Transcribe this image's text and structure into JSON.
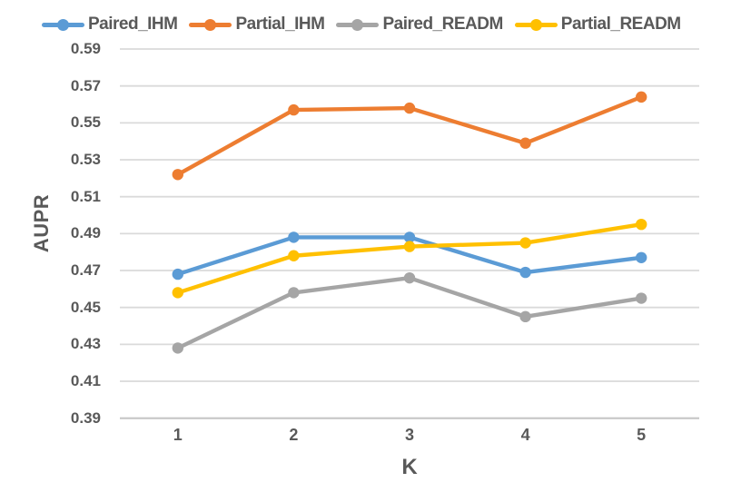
{
  "chart_data": {
    "type": "line",
    "categories": [
      "1",
      "2",
      "3",
      "4",
      "5"
    ],
    "series": [
      {
        "name": "Paired_IHM",
        "color": "#5B9BD5",
        "values": [
          0.468,
          0.488,
          0.488,
          0.469,
          0.477
        ]
      },
      {
        "name": "Partial_IHM",
        "color": "#ED7D31",
        "values": [
          0.522,
          0.557,
          0.558,
          0.539,
          0.564
        ]
      },
      {
        "name": "Paired_READM",
        "color": "#A5A5A5",
        "values": [
          0.428,
          0.458,
          0.466,
          0.445,
          0.455
        ]
      },
      {
        "name": "Partial_READM",
        "color": "#FFC000",
        "values": [
          0.458,
          0.478,
          0.483,
          0.485,
          0.495
        ]
      }
    ],
    "xlabel": "K",
    "ylabel": "AUPR",
    "ylim": [
      0.39,
      0.59
    ],
    "y_ticks": [
      "0.59",
      "0.57",
      "0.55",
      "0.53",
      "0.51",
      "0.49",
      "0.47",
      "0.45",
      "0.43",
      "0.41",
      "0.39"
    ],
    "legend_position": "top",
    "grid": "horizontal",
    "gridline_color": "#DADADA",
    "axis_line_color": "#C6C6C6",
    "text_color": "#595959",
    "marker": "circle"
  }
}
